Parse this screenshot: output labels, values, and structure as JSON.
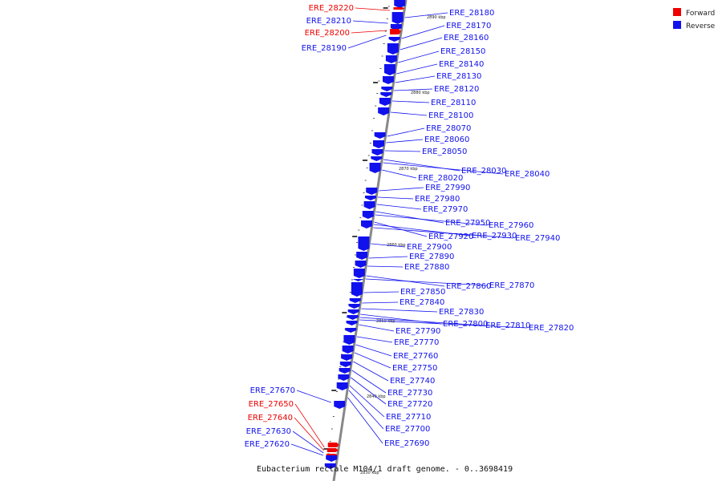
{
  "caption": "Eubacterium rectale M104/1 draft genome. - 0..3698419",
  "legend": [
    {
      "label": "Forward",
      "color": "#ee0000"
    },
    {
      "label": "Reverse",
      "color": "#1111ee"
    }
  ],
  "colors": {
    "forward": "#ee0000",
    "reverse": "#1111ee",
    "backbone": "#888888"
  },
  "ticks": [
    "2890 kbp",
    "2880 kbp",
    "2870 kbp",
    "2860 kbp",
    "2850 kbp",
    "2840 kbp",
    "2830 kbp"
  ],
  "genes": [
    {
      "id": "ERE_28220",
      "strand": "forward"
    },
    {
      "id": "ERE_28210",
      "strand": "reverse"
    },
    {
      "id": "ERE_28200",
      "strand": "forward"
    },
    {
      "id": "ERE_28190",
      "strand": "reverse"
    },
    {
      "id": "ERE_28180",
      "strand": "reverse"
    },
    {
      "id": "ERE_28170",
      "strand": "reverse"
    },
    {
      "id": "ERE_28160",
      "strand": "reverse"
    },
    {
      "id": "ERE_28150",
      "strand": "reverse"
    },
    {
      "id": "ERE_28140",
      "strand": "reverse"
    },
    {
      "id": "ERE_28130",
      "strand": "reverse"
    },
    {
      "id": "ERE_28120",
      "strand": "reverse"
    },
    {
      "id": "ERE_28110",
      "strand": "reverse"
    },
    {
      "id": "ERE_28100",
      "strand": "reverse"
    },
    {
      "id": "ERE_28070",
      "strand": "reverse"
    },
    {
      "id": "ERE_28060",
      "strand": "reverse"
    },
    {
      "id": "ERE_28050",
      "strand": "reverse"
    },
    {
      "id": "ERE_28030",
      "strand": "reverse"
    },
    {
      "id": "ERE_28040",
      "strand": "reverse"
    },
    {
      "id": "ERE_28020",
      "strand": "reverse"
    },
    {
      "id": "ERE_27990",
      "strand": "reverse"
    },
    {
      "id": "ERE_27980",
      "strand": "reverse"
    },
    {
      "id": "ERE_27970",
      "strand": "reverse"
    },
    {
      "id": "ERE_27950",
      "strand": "reverse"
    },
    {
      "id": "ERE_27960",
      "strand": "reverse"
    },
    {
      "id": "ERE_27920",
      "strand": "reverse"
    },
    {
      "id": "ERE_27930",
      "strand": "reverse"
    },
    {
      "id": "ERE_27940",
      "strand": "reverse"
    },
    {
      "id": "ERE_27900",
      "strand": "reverse"
    },
    {
      "id": "ERE_27890",
      "strand": "reverse"
    },
    {
      "id": "ERE_27880",
      "strand": "reverse"
    },
    {
      "id": "ERE_27860",
      "strand": "reverse"
    },
    {
      "id": "ERE_27870",
      "strand": "reverse"
    },
    {
      "id": "ERE_27850",
      "strand": "reverse"
    },
    {
      "id": "ERE_27840",
      "strand": "reverse"
    },
    {
      "id": "ERE_27830",
      "strand": "reverse"
    },
    {
      "id": "ERE_27800",
      "strand": "reverse"
    },
    {
      "id": "ERE_27810",
      "strand": "reverse"
    },
    {
      "id": "ERE_27820",
      "strand": "reverse"
    },
    {
      "id": "ERE_27790",
      "strand": "reverse"
    },
    {
      "id": "ERE_27770",
      "strand": "reverse"
    },
    {
      "id": "ERE_27760",
      "strand": "reverse"
    },
    {
      "id": "ERE_27750",
      "strand": "reverse"
    },
    {
      "id": "ERE_27740",
      "strand": "reverse"
    },
    {
      "id": "ERE_27730",
      "strand": "reverse"
    },
    {
      "id": "ERE_27720",
      "strand": "reverse"
    },
    {
      "id": "ERE_27710",
      "strand": "reverse"
    },
    {
      "id": "ERE_27700",
      "strand": "reverse"
    },
    {
      "id": "ERE_27690",
      "strand": "reverse"
    },
    {
      "id": "ERE_27670",
      "strand": "reverse"
    },
    {
      "id": "ERE_27650",
      "strand": "forward"
    },
    {
      "id": "ERE_27640",
      "strand": "forward"
    },
    {
      "id": "ERE_27630",
      "strand": "reverse"
    },
    {
      "id": "ERE_27620",
      "strand": "reverse"
    }
  ]
}
